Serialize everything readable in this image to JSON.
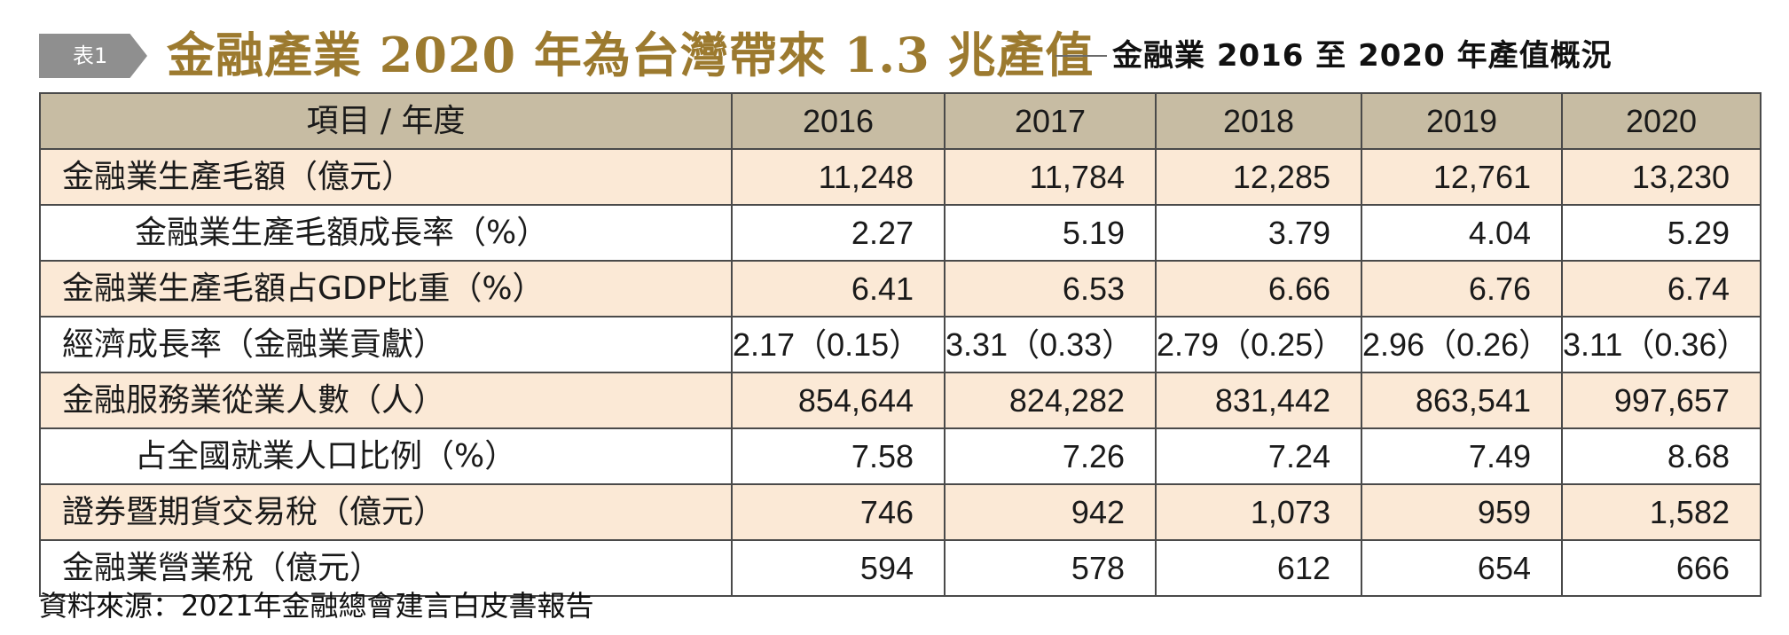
{
  "header": {
    "tag": "表1",
    "title": "金融產業 2020 年為台灣帶來 1.3 兆產值",
    "subtitle": "金融業 2016 至 2020 年產值概況"
  },
  "table": {
    "columns": [
      "項目 / 年度",
      "2016",
      "2017",
      "2018",
      "2019",
      "2020"
    ],
    "rows": [
      {
        "label": "金融業生產毛額（億元）",
        "indent": false,
        "values": [
          "11,248",
          "11,784",
          "12,285",
          "12,761",
          "13,230"
        ]
      },
      {
        "label": "金融業生產毛額成長率（%）",
        "indent": true,
        "values": [
          "2.27",
          "5.19",
          "3.79",
          "4.04",
          "5.29"
        ]
      },
      {
        "label": "金融業生產毛額占GDP比重（%）",
        "indent": false,
        "values": [
          "6.41",
          "6.53",
          "6.66",
          "6.76",
          "6.74"
        ]
      },
      {
        "label": "經濟成長率（金融業貢獻）",
        "indent": false,
        "values": [
          "2.17（0.15）",
          "3.31（0.33）",
          "2.79（0.25）",
          "2.96（0.26）",
          "3.11（0.36）"
        ]
      },
      {
        "label": "金融服務業從業人數（人）",
        "indent": false,
        "values": [
          "854,644",
          "824,282",
          "831,442",
          "863,541",
          "997,657"
        ]
      },
      {
        "label": "占全國就業人口比例（%）",
        "indent": true,
        "values": [
          "7.58",
          "7.26",
          "7.24",
          "7.49",
          "8.68"
        ]
      },
      {
        "label": "證券暨期貨交易稅（億元）",
        "indent": false,
        "values": [
          "746",
          "942",
          "1,073",
          "959",
          "1,582"
        ]
      },
      {
        "label": "金融業營業稅（億元）",
        "indent": false,
        "values": [
          "594",
          "578",
          "612",
          "654",
          "666"
        ]
      }
    ]
  },
  "source": "資料來源：2021年金融總會建言白皮書報告",
  "colors": {
    "title": "#9c7a2f",
    "header_bg": "#c7bca3",
    "row_shade": "#fbe9d6",
    "tag_bg": "#8f8f8f"
  }
}
